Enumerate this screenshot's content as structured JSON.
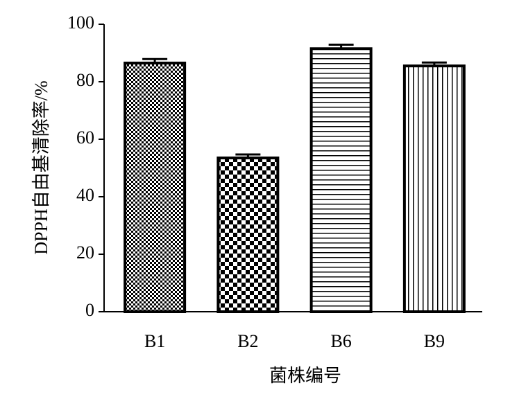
{
  "chart_data": {
    "type": "bar",
    "x_label": "菌株编号",
    "y_label": "DPPH自由基清除率/%",
    "categories": [
      "B1",
      "B2",
      "B6",
      "B9"
    ],
    "values": [
      86.5,
      53.5,
      91.5,
      85.5
    ],
    "errors": [
      1.4,
      1.2,
      1.4,
      1.2
    ],
    "color": "#000000",
    "ylim": [
      0,
      100
    ],
    "yticks": [
      0,
      20,
      40,
      60,
      80,
      100
    ],
    "grid": false
  }
}
